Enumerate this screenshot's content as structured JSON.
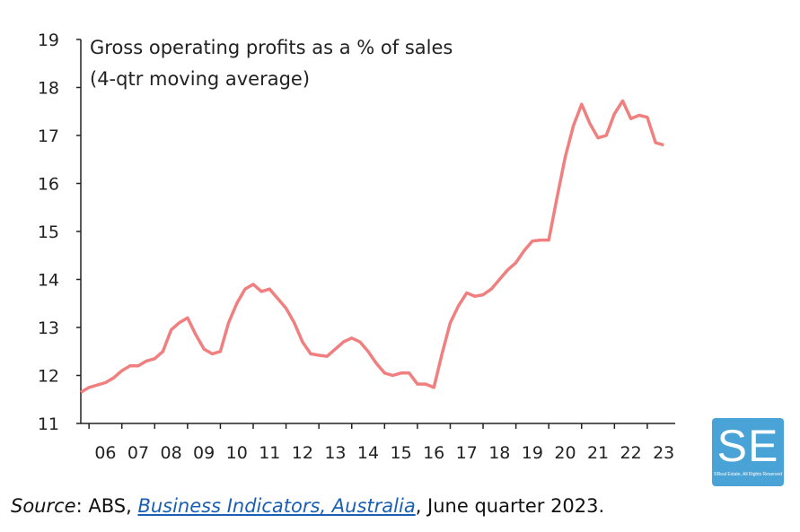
{
  "chart_data": {
    "type": "line",
    "title": "Gross operating profits as a % of sales",
    "subtitle": "(4-qtr moving average)",
    "ylim": [
      11,
      19
    ],
    "yticks": [
      "11",
      "12",
      "13",
      "14",
      "15",
      "16",
      "17",
      "18",
      "19"
    ],
    "xticks": [
      "06",
      "07",
      "08",
      "09",
      "10",
      "11",
      "12",
      "13",
      "14",
      "15",
      "16",
      "17",
      "18",
      "19",
      "20",
      "21",
      "22",
      "23"
    ],
    "xlim": [
      2005.75,
      2023.85
    ],
    "line_color": "#f07f7f",
    "grid": false,
    "series": [
      {
        "x": [
          2005.75,
          2006.0,
          2006.25,
          2006.5,
          2006.75,
          2007.0,
          2007.25,
          2007.5,
          2007.75,
          2008.0,
          2008.25,
          2008.5,
          2008.75,
          2009.0,
          2009.25,
          2009.5,
          2009.75,
          2010.0,
          2010.25,
          2010.5,
          2010.75,
          2011.0,
          2011.25,
          2011.5,
          2011.75,
          2012.0,
          2012.25,
          2012.5,
          2012.75,
          2013.0,
          2013.25,
          2013.5,
          2013.75,
          2014.0,
          2014.25,
          2014.5,
          2014.75,
          2015.0,
          2015.25,
          2015.5,
          2015.75,
          2016.0,
          2016.25,
          2016.5,
          2016.75,
          2017.0,
          2017.25,
          2017.5,
          2017.75,
          2018.0,
          2018.25,
          2018.5,
          2018.75,
          2019.0,
          2019.25,
          2019.5,
          2019.75,
          2020.0,
          2020.25,
          2020.5,
          2020.75,
          2021.0,
          2021.25,
          2021.5,
          2021.75,
          2022.0,
          2022.25,
          2022.5,
          2022.75,
          2023.0,
          2023.25,
          2023.5
        ],
        "values": [
          11.65,
          11.75,
          11.8,
          11.85,
          11.95,
          12.1,
          12.2,
          12.2,
          12.3,
          12.35,
          12.5,
          12.95,
          13.1,
          13.2,
          12.85,
          12.55,
          12.45,
          12.5,
          13.1,
          13.5,
          13.8,
          13.9,
          13.75,
          13.8,
          13.6,
          13.4,
          13.1,
          12.7,
          12.45,
          12.42,
          12.4,
          12.55,
          12.7,
          12.78,
          12.7,
          12.5,
          12.25,
          12.05,
          12.0,
          12.05,
          12.05,
          11.82,
          11.82,
          11.75,
          12.45,
          13.1,
          13.45,
          13.72,
          13.65,
          13.68,
          13.8,
          14.0,
          14.2,
          14.35,
          14.6,
          14.8,
          14.82,
          14.82,
          15.7,
          16.55,
          17.2,
          17.65,
          17.25,
          16.95,
          17.0,
          17.45,
          17.72,
          17.35,
          17.42,
          17.38,
          16.85,
          16.8
        ]
      }
    ]
  },
  "source": {
    "label": "Source",
    "colon": ": ABS, ",
    "link": "Business Indicators, Australia",
    "rest": ", June quarter 2023."
  },
  "logo": {
    "text": "SE",
    "sub": "©Real Estate, All Rights Reserved"
  }
}
